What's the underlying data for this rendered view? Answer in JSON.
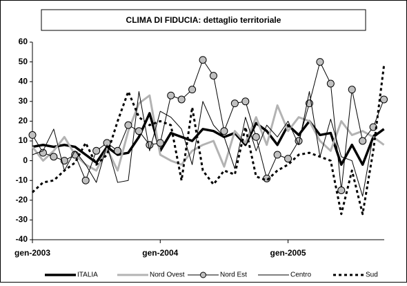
{
  "chart_data": {
    "type": "line",
    "title": "CLIMA DI FIDUCIA: dettaglio territoriale",
    "categories": [
      "gen-2003",
      null,
      null,
      null,
      null,
      null,
      null,
      null,
      null,
      null,
      null,
      null,
      "gen-2004",
      null,
      null,
      null,
      null,
      null,
      null,
      null,
      null,
      null,
      null,
      null,
      "gen-2005",
      null,
      null,
      null,
      null,
      null,
      null,
      null,
      null,
      null
    ],
    "series": [
      {
        "name": "ITALIA",
        "color": "#000000",
        "width": 3.5,
        "dash": "none",
        "marker": "none",
        "values": [
          7,
          8,
          7,
          8,
          7,
          3,
          -1,
          7,
          3,
          4,
          12,
          24,
          5,
          14,
          12,
          10,
          16,
          15,
          12,
          14,
          8,
          19,
          15,
          8,
          18,
          13,
          20,
          13,
          14,
          -2,
          8,
          -2,
          12,
          16
        ]
      },
      {
        "name": "Nord Ovest",
        "color": "#b3b3b3",
        "width": 3,
        "dash": "none",
        "marker": "none",
        "values": [
          7,
          0,
          5,
          12,
          3,
          -2,
          -5,
          6,
          -5,
          15,
          29,
          33,
          3,
          0,
          -2,
          5,
          8,
          10,
          -3,
          15,
          9,
          22,
          8,
          28,
          15,
          22,
          20,
          10,
          5,
          20,
          13,
          15,
          12,
          8
        ]
      },
      {
        "name": "Nord Est",
        "color": "#000000",
        "width": 1,
        "dash": "none",
        "marker": "circle",
        "values": [
          13,
          4,
          2,
          0,
          3,
          -10,
          5,
          9,
          5,
          18,
          15,
          8,
          9,
          33,
          31,
          36,
          51,
          43,
          15,
          29,
          30,
          12,
          -9,
          3,
          1,
          10,
          29,
          50,
          39,
          -15,
          36,
          10,
          17,
          31
        ]
      },
      {
        "name": "Centro",
        "color": "#000000",
        "width": 1,
        "dash": "none",
        "marker": "none",
        "values": [
          3,
          5,
          16,
          -5,
          5,
          -2,
          -11,
          8,
          -11,
          -10,
          35,
          5,
          25,
          22,
          16,
          -2,
          30,
          18,
          12,
          -4,
          22,
          5,
          18,
          12,
          20,
          8,
          35,
          2,
          21,
          2,
          0,
          -18,
          13,
          16
        ]
      },
      {
        "name": "Sud",
        "color": "#000000",
        "width": 3,
        "dash": "4 4",
        "marker": "none",
        "values": [
          -16,
          -11,
          -10,
          -5,
          -1,
          9,
          -2,
          3,
          20,
          35,
          22,
          18,
          20,
          18,
          -10,
          27,
          -5,
          -12,
          -5,
          -7,
          17,
          -8,
          -10,
          -5,
          -2,
          3,
          4,
          2,
          0,
          -27,
          -5,
          -27,
          5,
          48
        ]
      }
    ],
    "ylim": [
      -40,
      60
    ],
    "yticks": [
      -40,
      -30,
      -20,
      -10,
      0,
      10,
      20,
      30,
      40,
      50,
      60
    ],
    "grid": false
  }
}
